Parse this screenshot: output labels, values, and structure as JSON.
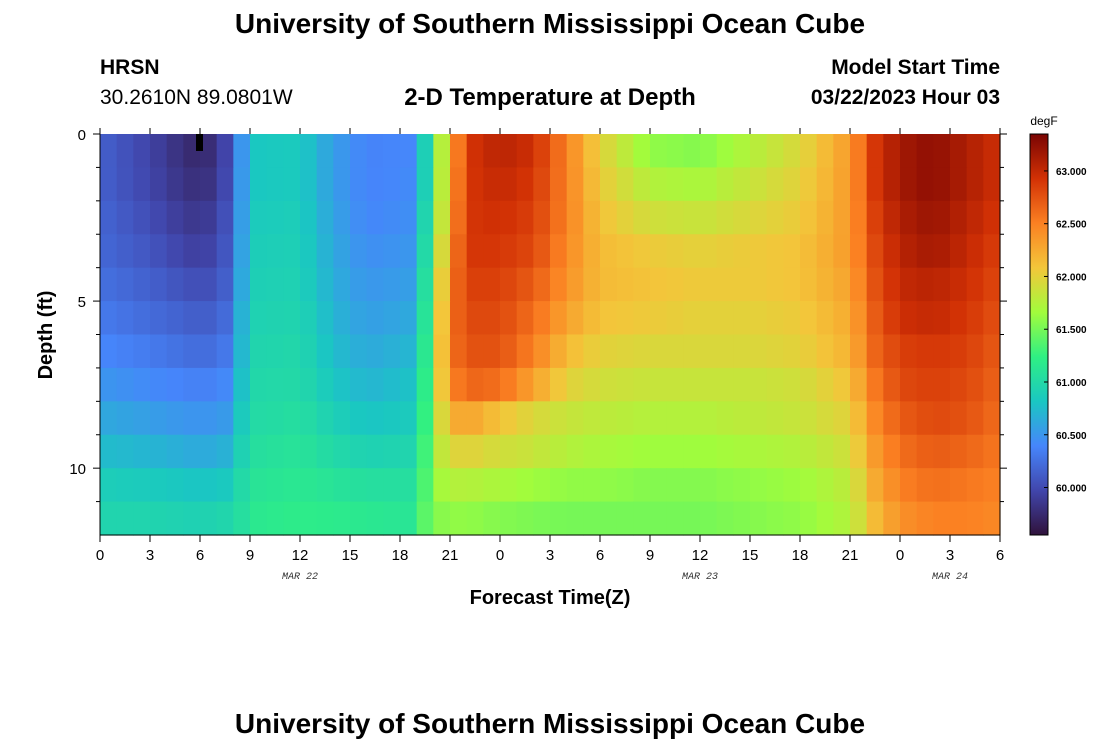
{
  "page": {
    "title": "University of Southern Mississippi Ocean Cube",
    "footer_title": "University of Southern Mississippi Ocean Cube",
    "station": {
      "code": "HRSN",
      "coords": "30.2610N  89.0801W"
    },
    "subtitle": "2-D Temperature at Depth",
    "model": {
      "label": "Model Start Time",
      "time": "03/22/2023 Hour 03"
    }
  },
  "chart_data": {
    "type": "heatmap",
    "title": "2-D Temperature at Depth",
    "xlabel": "Forecast Time(Z)",
    "ylabel": "Depth (ft)",
    "x_unit": "hours since 03/22 00Z",
    "xlim": [
      0,
      54
    ],
    "ylim": [
      12,
      0
    ],
    "x_ticks": [
      0,
      3,
      6,
      9,
      12,
      15,
      18,
      21,
      24,
      27,
      30,
      33,
      36,
      39,
      42,
      45,
      48,
      51,
      54
    ],
    "x_tick_labels": [
      "0",
      "3",
      "6",
      "9",
      "12",
      "15",
      "18",
      "21",
      "0",
      "3",
      "6",
      "9",
      "12",
      "15",
      "18",
      "21",
      "0",
      "3",
      "6"
    ],
    "date_labels": [
      {
        "x": 12,
        "text": "MAR 22"
      },
      {
        "x": 36,
        "text": "MAR 23"
      },
      {
        "x": 51,
        "text": "MAR 24"
      }
    ],
    "y_ticks": [
      0,
      5,
      10
    ],
    "y_tick_labels": [
      "0",
      "5",
      "10"
    ],
    "y_minor_ticks": [
      1,
      2,
      3,
      4,
      6,
      7,
      8,
      9,
      11
    ],
    "colorbar": {
      "unit": "degF",
      "min": 59.55,
      "max": 63.35,
      "ticks": [
        60.0,
        60.5,
        61.0,
        61.5,
        62.0,
        62.5,
        63.0
      ],
      "tick_labels": [
        "60.000",
        "60.500",
        "61.000",
        "61.500",
        "62.000",
        "62.500",
        "63.000"
      ],
      "colormap": [
        "#30123b",
        "#4146ac",
        "#4686fb",
        "#1ac7c2",
        "#2ff083",
        "#a2fc3c",
        "#f3c63a",
        "#fb8022",
        "#d23105",
        "#7a0403"
      ]
    },
    "depths": [
      0.5,
      1.5,
      2.5,
      3.5,
      4.5,
      5.5,
      6.5,
      7.5,
      8.5,
      9.5,
      10.5,
      11.5
    ],
    "time_nodes": [
      0,
      3,
      5,
      6,
      7,
      8,
      8.5,
      9,
      12,
      14,
      16,
      18.6,
      19.5,
      20.2,
      21,
      22,
      24,
      26,
      28,
      30,
      33,
      36,
      39,
      42,
      45,
      46.5,
      48,
      50,
      52,
      54
    ],
    "values": [
      [
        60.15,
        59.95,
        59.78,
        59.72,
        59.82,
        60.1,
        60.5,
        60.82,
        60.85,
        60.55,
        60.38,
        60.4,
        60.9,
        61.5,
        62.2,
        62.9,
        63.05,
        62.95,
        62.5,
        62.0,
        61.6,
        61.55,
        61.75,
        61.95,
        62.35,
        62.9,
        63.15,
        63.25,
        63.1,
        62.95
      ],
      [
        60.15,
        59.97,
        59.82,
        59.78,
        59.85,
        60.12,
        60.52,
        60.82,
        60.85,
        60.55,
        60.38,
        60.42,
        60.9,
        61.5,
        62.25,
        62.9,
        63.0,
        62.9,
        62.5,
        62.05,
        61.75,
        61.7,
        61.85,
        62.0,
        62.35,
        62.9,
        63.15,
        63.25,
        63.1,
        62.95
      ],
      [
        60.18,
        60.02,
        59.88,
        59.85,
        59.92,
        60.15,
        60.55,
        60.85,
        60.88,
        60.58,
        60.4,
        60.45,
        60.95,
        61.55,
        62.3,
        62.9,
        62.95,
        62.85,
        62.5,
        62.1,
        61.9,
        61.85,
        61.95,
        62.05,
        62.35,
        62.85,
        63.1,
        63.2,
        63.05,
        62.9
      ],
      [
        60.2,
        60.08,
        59.95,
        59.92,
        59.98,
        60.18,
        60.58,
        60.88,
        60.9,
        60.62,
        60.45,
        60.5,
        61.0,
        61.65,
        62.4,
        62.9,
        62.9,
        62.8,
        62.45,
        62.15,
        62.05,
        62.0,
        62.05,
        62.1,
        62.35,
        62.8,
        63.05,
        63.15,
        63.0,
        62.85
      ],
      [
        60.25,
        60.15,
        60.05,
        60.02,
        60.05,
        60.22,
        60.62,
        60.9,
        60.92,
        60.65,
        60.5,
        60.55,
        61.05,
        61.75,
        62.5,
        62.85,
        62.85,
        62.7,
        62.4,
        62.15,
        62.1,
        62.05,
        62.05,
        62.1,
        62.3,
        62.75,
        63.0,
        63.05,
        62.95,
        62.8
      ],
      [
        60.32,
        60.22,
        60.15,
        60.12,
        60.15,
        60.28,
        60.68,
        60.92,
        60.95,
        60.7,
        60.55,
        60.62,
        61.1,
        61.8,
        62.55,
        62.8,
        62.8,
        62.6,
        62.3,
        62.1,
        62.05,
        62.0,
        62.0,
        62.05,
        62.25,
        62.7,
        62.95,
        63.0,
        62.9,
        62.75
      ],
      [
        60.4,
        60.32,
        60.25,
        60.22,
        60.25,
        60.35,
        60.72,
        60.95,
        60.98,
        60.75,
        60.62,
        60.7,
        61.15,
        61.85,
        62.55,
        62.75,
        62.75,
        62.5,
        62.15,
        62.0,
        61.95,
        61.95,
        61.95,
        62.0,
        62.2,
        62.65,
        62.85,
        62.9,
        62.85,
        62.7
      ],
      [
        60.5,
        60.42,
        60.38,
        60.35,
        60.38,
        60.45,
        60.78,
        60.98,
        61.0,
        60.82,
        60.7,
        60.78,
        61.2,
        61.85,
        62.45,
        62.65,
        62.6,
        62.3,
        62.0,
        61.9,
        61.85,
        61.85,
        61.85,
        61.9,
        62.1,
        62.55,
        62.8,
        62.85,
        62.8,
        62.65
      ],
      [
        60.62,
        60.55,
        60.5,
        60.48,
        60.5,
        60.55,
        60.85,
        61.0,
        61.05,
        60.9,
        60.8,
        60.85,
        61.25,
        61.8,
        62.2,
        62.3,
        62.1,
        61.95,
        61.85,
        61.8,
        61.75,
        61.75,
        61.8,
        61.85,
        62.0,
        62.45,
        62.7,
        62.8,
        62.75,
        62.6
      ],
      [
        60.75,
        60.7,
        60.65,
        60.62,
        60.65,
        60.7,
        60.92,
        61.05,
        61.1,
        61.0,
        60.92,
        60.95,
        61.3,
        61.75,
        61.95,
        62.0,
        61.9,
        61.85,
        61.75,
        61.7,
        61.65,
        61.65,
        61.7,
        61.75,
        61.9,
        62.35,
        62.6,
        62.7,
        62.65,
        62.55
      ],
      [
        60.88,
        60.85,
        60.82,
        60.8,
        60.82,
        60.85,
        61.0,
        61.1,
        61.15,
        61.1,
        61.05,
        61.05,
        61.35,
        61.65,
        61.75,
        61.75,
        61.7,
        61.65,
        61.6,
        61.6,
        61.55,
        61.55,
        61.6,
        61.65,
        61.8,
        62.25,
        62.5,
        62.6,
        62.55,
        62.5
      ],
      [
        60.95,
        60.95,
        60.92,
        60.92,
        60.95,
        60.98,
        61.05,
        61.15,
        61.2,
        61.18,
        61.15,
        61.12,
        61.4,
        61.55,
        61.6,
        61.6,
        61.55,
        61.52,
        61.5,
        61.5,
        61.5,
        61.5,
        61.55,
        61.6,
        61.75,
        62.15,
        62.4,
        62.5,
        62.5,
        62.45
      ]
    ]
  }
}
